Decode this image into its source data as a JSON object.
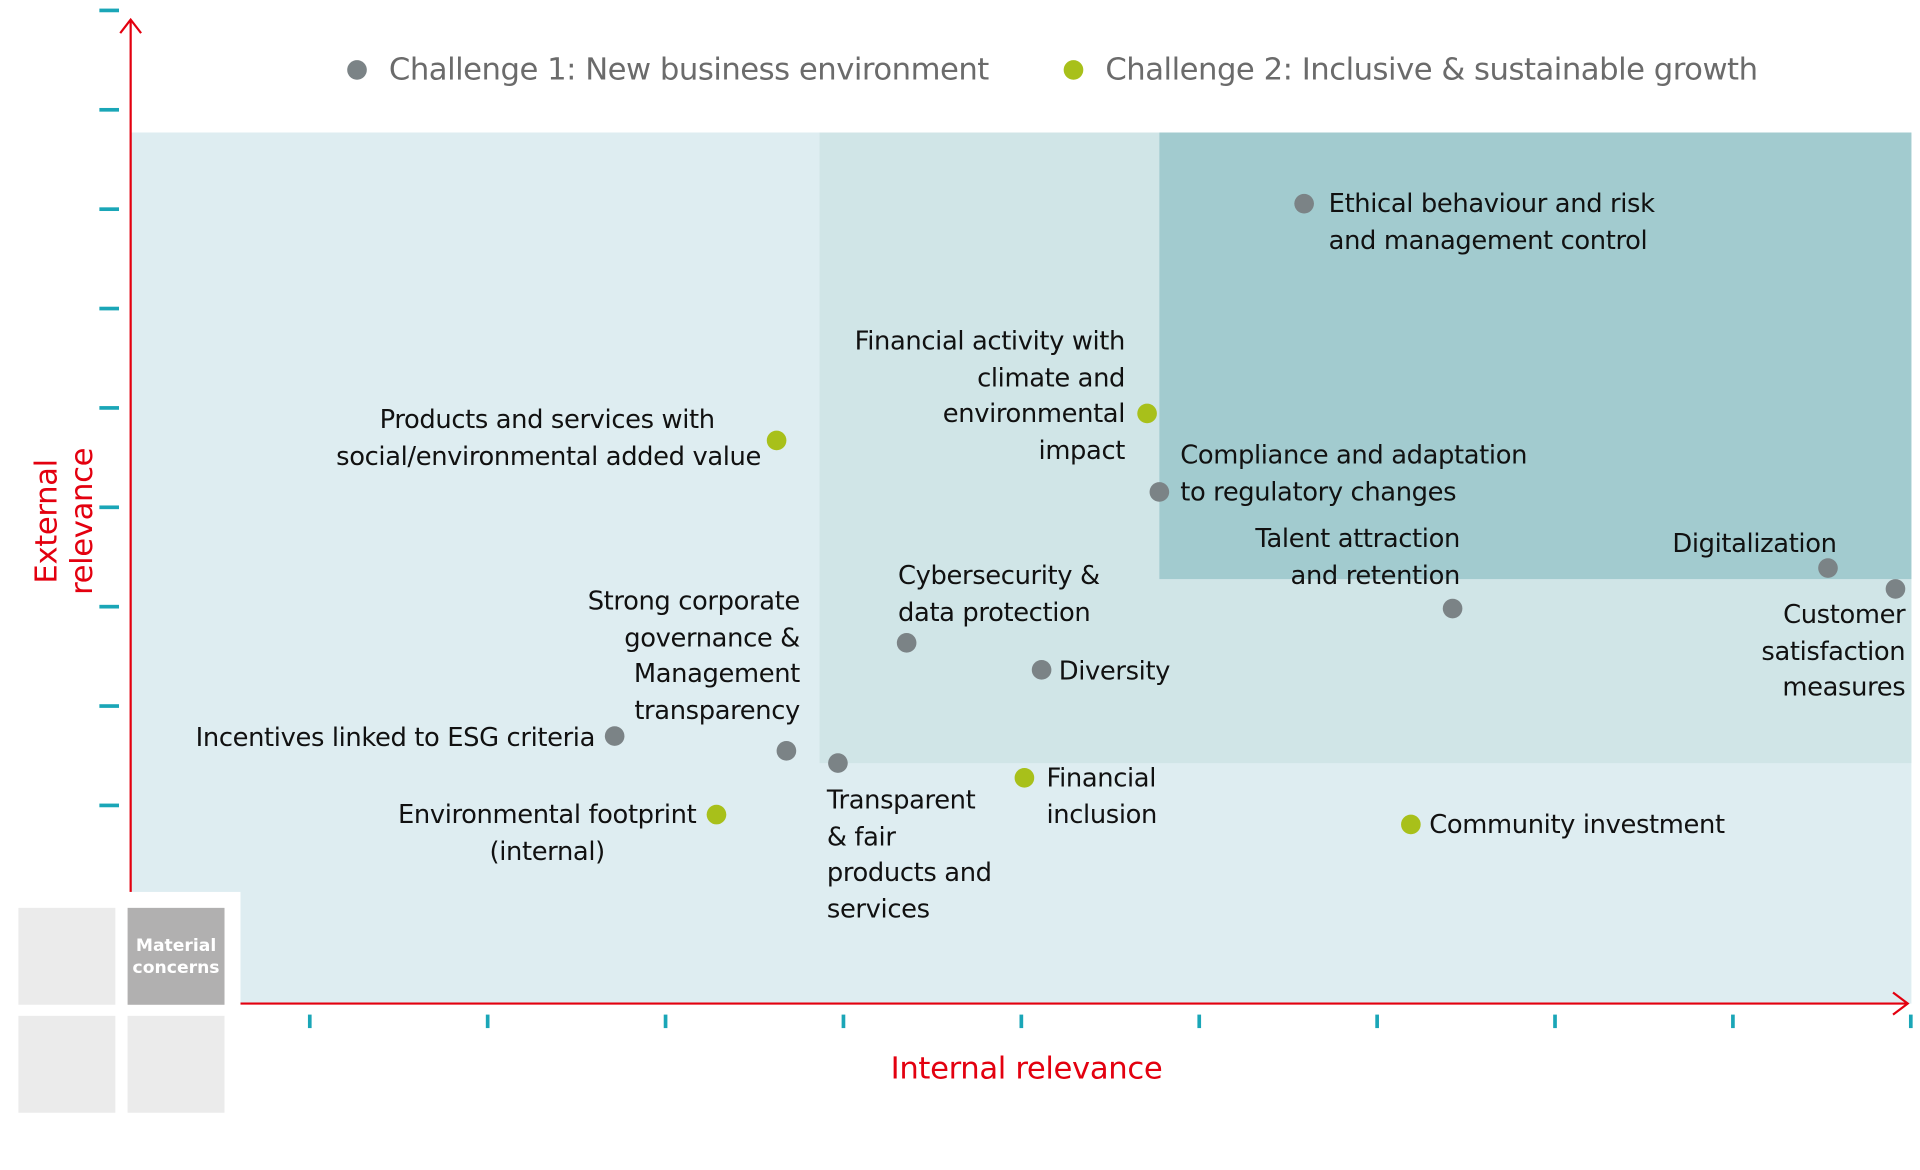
{
  "chart_data": {
    "type": "scatter",
    "title": "",
    "xlabel": "Internal relevance",
    "ylabel": "External relevance",
    "xlim": [
      0,
      10
    ],
    "ylim": [
      0,
      10
    ],
    "x_ticks": [
      1,
      2,
      3,
      4,
      5,
      6,
      7,
      8,
      9,
      10
    ],
    "y_ticks": [
      2,
      3,
      4,
      5,
      6,
      7,
      8,
      9,
      10
    ],
    "grid": false,
    "legend_position": "top",
    "series": [
      {
        "name": "Challenge 1: New business environment",
        "color": "#7b8386"
      },
      {
        "name": "Challenge 2: Inclusive & sustainable growth",
        "color": "#a8c01a"
      }
    ],
    "zones": [
      {
        "x_min": 0,
        "y_min": 0,
        "x_max": 10,
        "y_max": 8.77,
        "color": "#deedf1"
      },
      {
        "x_min": 3.87,
        "y_min": 2.42,
        "x_max": 10,
        "y_max": 8.77,
        "color": "#d0e5e7"
      },
      {
        "x_min": 5.78,
        "y_min": 4.27,
        "x_max": 10,
        "y_max": 8.77,
        "color": "#a2cbcf"
      }
    ],
    "points": [
      {
        "label": "Ethical behaviour and risk\nand management control",
        "series": 0,
        "x": 6.59,
        "y": 8.05
      },
      {
        "label": "Financial activity with\nclimate and\nenvironmental\nimpact",
        "series": 1,
        "x": 5.71,
        "y": 5.94
      },
      {
        "label": "Compliance and adaptation\nto regulatory changes",
        "series": 0,
        "x": 5.78,
        "y": 5.15
      },
      {
        "label": "Products and services with\nsocial/environmental added value",
        "series": 1,
        "x": 3.63,
        "y": 5.67
      },
      {
        "label": "Talent attraction\nand retention",
        "series": 0,
        "x": 7.43,
        "y": 3.98
      },
      {
        "label": "Digitalization",
        "series": 0,
        "x": 9.54,
        "y": 4.38
      },
      {
        "label": "Customer\nsatisfaction\nmeasures",
        "series": 0,
        "x": 9.92,
        "y": 4.17
      },
      {
        "label": "Cybersecurity &\ndata protection",
        "series": 0,
        "x": 4.36,
        "y": 3.63
      },
      {
        "label": "Diversity",
        "series": 0,
        "x": 5.12,
        "y": 3.36
      },
      {
        "label": "Strong corporate\ngovernance &\nManagement\ntransparency",
        "series": 0,
        "x": 3.68,
        "y": 2.54
      },
      {
        "label": "Incentives linked to ESG criteria",
        "series": 0,
        "x": 2.72,
        "y": 2.69
      },
      {
        "label": "Transparent\n& fair\nproducts and\nservices",
        "series": 0,
        "x": 3.97,
        "y": 2.42
      },
      {
        "label": "Financial\ninclusion",
        "series": 1,
        "x": 5.02,
        "y": 2.27
      },
      {
        "label": "Environmental footprint\n(internal)",
        "series": 1,
        "x": 3.29,
        "y": 1.9
      },
      {
        "label": "Community investment",
        "series": 1,
        "x": 7.19,
        "y": 1.8
      }
    ]
  },
  "key": {
    "material_label": "Material\nconcerns"
  },
  "colors": {
    "axis": "#e3000f",
    "tick": "#1aa6b7"
  }
}
